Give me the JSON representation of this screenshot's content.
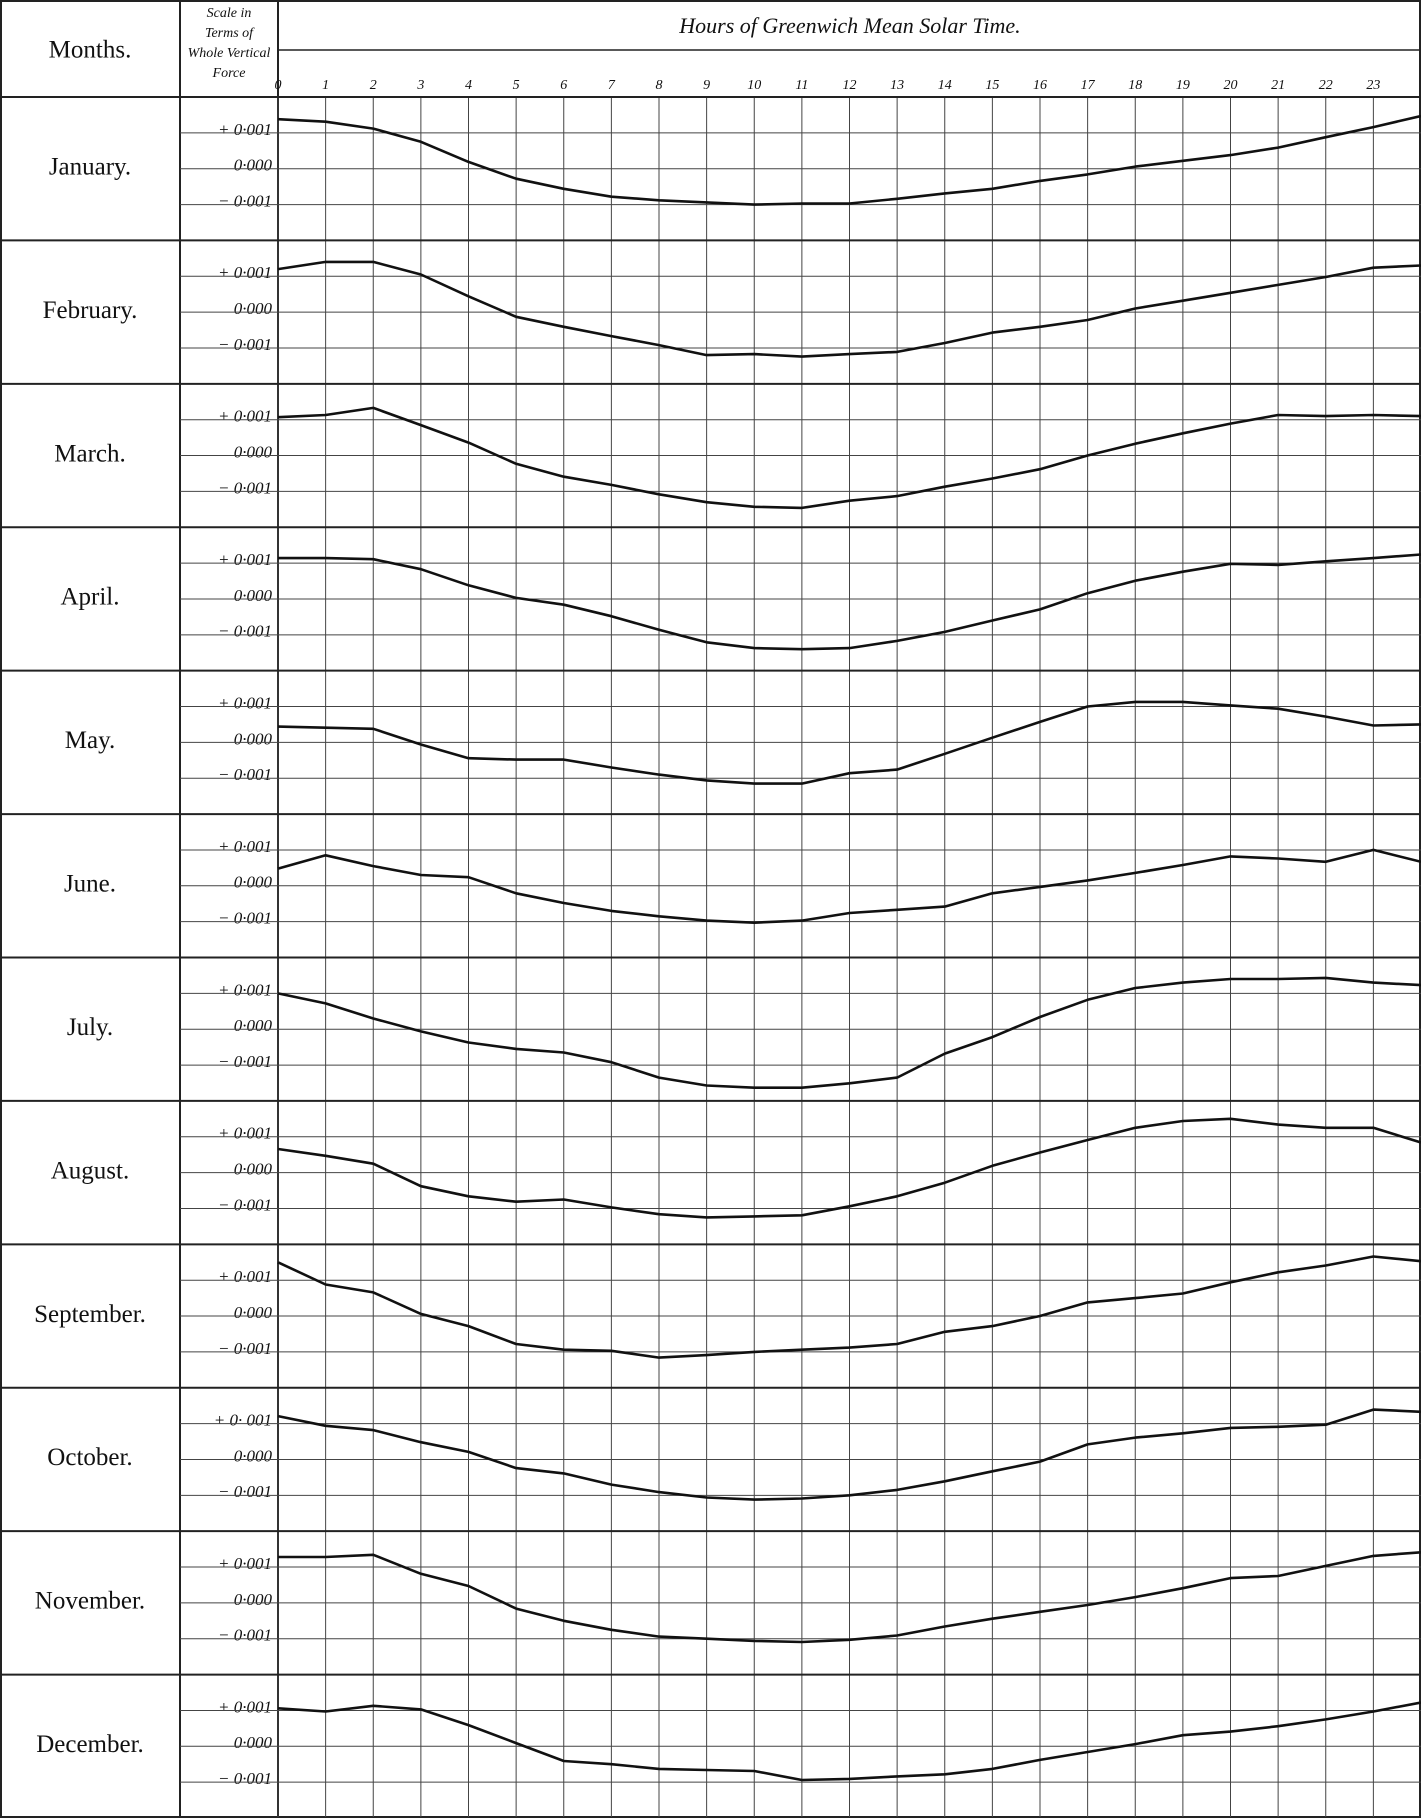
{
  "header": {
    "months_label": "Months.",
    "scale_label": [
      "Scale in",
      "Terms of",
      "Whole Vertical",
      "Force"
    ]
  },
  "hours_axis": {
    "title": "Hours of Greenwich Mean Solar Time.",
    "xlim": [
      0,
      24
    ],
    "xticks": [
      0,
      1,
      2,
      3,
      4,
      5,
      6,
      7,
      8,
      9,
      10,
      11,
      12,
      13,
      14,
      15,
      16,
      17,
      18,
      19,
      20,
      21,
      22,
      23
    ]
  },
  "chart_data": [
    {
      "type": "line",
      "title": "January.",
      "x": [
        0,
        1,
        2,
        3,
        4,
        5,
        6,
        7,
        8,
        9,
        10,
        11,
        12,
        13,
        14,
        15,
        16,
        17,
        18,
        19,
        20,
        21,
        22,
        23,
        24
      ],
      "values": [
        0.00138,
        0.00131,
        0.00112,
        0.00075,
        0.00019,
        -0.00028,
        -0.00056,
        -0.00078,
        -0.00088,
        -0.00094,
        -0.001,
        -0.00097,
        -0.00097,
        -0.00084,
        -0.00069,
        -0.00056,
        -0.00034,
        -0.00016,
        6e-05,
        0.00022,
        0.00038,
        0.00059,
        0.00088,
        0.00116,
        0.00147
      ],
      "color": "#111111",
      "ylim": [
        -0.002,
        0.002
      ],
      "yticks": [
        {
          "value": 0.001,
          "label": "+ 0·001"
        },
        {
          "value": 0,
          "label": "0·000"
        },
        {
          "value": -0.001,
          "label": "− 0·001"
        }
      ],
      "grid": true
    },
    {
      "type": "line",
      "title": "February.",
      "x": [
        0,
        1,
        2,
        3,
        4,
        5,
        6,
        7,
        8,
        9,
        10,
        11,
        12,
        13,
        14,
        15,
        16,
        17,
        18,
        19,
        20,
        21,
        22,
        23,
        24
      ],
      "values": [
        0.0012,
        0.0014,
        0.0014,
        0.00105,
        0.00044,
        -0.00013,
        -0.00041,
        -0.00067,
        -0.00092,
        -0.0012,
        -0.00117,
        -0.00124,
        -0.00117,
        -0.00111,
        -0.00086,
        -0.00057,
        -0.00041,
        -0.00022,
        0.0001,
        0.00032,
        0.00054,
        0.00076,
        0.00098,
        0.00124,
        0.0013
      ],
      "color": "#111111",
      "ylim": [
        -0.002,
        0.002
      ],
      "yticks": [
        {
          "value": 0.001,
          "label": "+ 0·001"
        },
        {
          "value": 0,
          "label": "0·000"
        },
        {
          "value": -0.001,
          "label": "− 0·001"
        }
      ],
      "grid": true
    },
    {
      "type": "line",
      "title": "March.",
      "x": [
        0,
        1,
        2,
        3,
        4,
        5,
        6,
        7,
        8,
        9,
        10,
        11,
        12,
        13,
        14,
        15,
        16,
        17,
        18,
        19,
        20,
        21,
        22,
        23,
        24
      ],
      "values": [
        0.00107,
        0.00113,
        0.00133,
        0.00085,
        0.00036,
        -0.00023,
        -0.00059,
        -0.00082,
        -0.00108,
        -0.0013,
        -0.00143,
        -0.00146,
        -0.00126,
        -0.00113,
        -0.00087,
        -0.00064,
        -0.00038,
        0,
        0.00033,
        0.00062,
        0.00089,
        0.00113,
        0.0011,
        0.00113,
        0.0011
      ],
      "color": "#111111",
      "ylim": [
        -0.002,
        0.002
      ],
      "yticks": [
        {
          "value": 0.001,
          "label": "+ 0·001"
        },
        {
          "value": 0,
          "label": "0·000"
        },
        {
          "value": -0.001,
          "label": "− 0·001"
        }
      ],
      "grid": true
    },
    {
      "type": "line",
      "title": "April.",
      "x": [
        0,
        1,
        2,
        3,
        4,
        5,
        6,
        7,
        8,
        9,
        10,
        11,
        12,
        13,
        14,
        15,
        16,
        17,
        18,
        19,
        20,
        21,
        22,
        23,
        24
      ],
      "values": [
        0.00114,
        0.00114,
        0.00111,
        0.00083,
        0.00038,
        3e-05,
        -0.00016,
        -0.00048,
        -0.00086,
        -0.00121,
        -0.00137,
        -0.0014,
        -0.00137,
        -0.00117,
        -0.00092,
        -0.0006,
        -0.00029,
        0.00016,
        0.00051,
        0.00076,
        0.00098,
        0.00095,
        0.00105,
        0.00114,
        0.00124
      ],
      "color": "#111111",
      "ylim": [
        -0.002,
        0.002
      ],
      "yticks": [
        {
          "value": 0.001,
          "label": "+ 0·001"
        },
        {
          "value": 0,
          "label": "0·000"
        },
        {
          "value": -0.001,
          "label": "− 0·001"
        }
      ],
      "grid": true
    },
    {
      "type": "line",
      "title": "May.",
      "x": [
        0,
        1,
        2,
        3,
        4,
        5,
        6,
        7,
        8,
        9,
        10,
        11,
        12,
        13,
        14,
        15,
        16,
        17,
        18,
        19,
        20,
        21,
        22,
        23,
        24
      ],
      "values": [
        0.00044,
        0.00041,
        0.00038,
        -6e-05,
        -0.00044,
        -0.00048,
        -0.00048,
        -0.0007,
        -0.0009,
        -0.00106,
        -0.00115,
        -0.00115,
        -0.00086,
        -0.00076,
        -0.00032,
        0.00013,
        0.00057,
        0.001,
        0.00113,
        0.00113,
        0.00103,
        0.00094,
        0.00072,
        0.00047,
        0.0005
      ],
      "color": "#111111",
      "ylim": [
        -0.002,
        0.002
      ],
      "yticks": [
        {
          "value": 0.001,
          "label": "+ 0·001"
        },
        {
          "value": 0,
          "label": "0·000"
        },
        {
          "value": -0.001,
          "label": "− 0·001"
        }
      ],
      "grid": true
    },
    {
      "type": "line",
      "title": "June.",
      "x": [
        0,
        1,
        2,
        3,
        4,
        5,
        6,
        7,
        8,
        9,
        10,
        11,
        12,
        13,
        14,
        15,
        16,
        17,
        18,
        19,
        20,
        21,
        22,
        23,
        24
      ],
      "values": [
        0.00048,
        0.00085,
        0.00055,
        0.0003,
        0.00024,
        -0.00021,
        -0.00048,
        -0.0007,
        -0.00085,
        -0.00097,
        -0.00103,
        -0.00097,
        -0.00076,
        -0.00067,
        -0.00058,
        -0.00021,
        -3e-05,
        0.00015,
        0.00036,
        0.00058,
        0.00082,
        0.00076,
        0.00067,
        0.001,
        0.00067
      ],
      "color": "#111111",
      "ylim": [
        -0.002,
        0.002
      ],
      "yticks": [
        {
          "value": 0.001,
          "label": "+ 0·001"
        },
        {
          "value": 0,
          "label": "0·000"
        },
        {
          "value": -0.001,
          "label": "− 0·001"
        }
      ],
      "grid": true
    },
    {
      "type": "line",
      "title": "July.",
      "x": [
        0,
        1,
        2,
        3,
        4,
        5,
        6,
        7,
        8,
        9,
        10,
        11,
        12,
        13,
        14,
        15,
        16,
        17,
        18,
        19,
        20,
        21,
        22,
        23,
        24
      ],
      "values": [
        0.001,
        0.00072,
        0.0003,
        -6e-05,
        -0.00037,
        -0.00055,
        -0.00065,
        -0.00092,
        -0.00135,
        -0.00157,
        -0.00163,
        -0.00163,
        -0.00151,
        -0.00135,
        -0.00068,
        -0.00022,
        0.00034,
        0.00082,
        0.00115,
        0.0013,
        0.0014,
        0.0014,
        0.00143,
        0.0013,
        0.00123
      ],
      "color": "#111111",
      "ylim": [
        -0.002,
        0.002
      ],
      "yticks": [
        {
          "value": 0.001,
          "label": "+ 0·001"
        },
        {
          "value": 0,
          "label": "0·000"
        },
        {
          "value": -0.001,
          "label": "− 0·001"
        }
      ],
      "grid": true
    },
    {
      "type": "line",
      "title": "August.",
      "x": [
        0,
        1,
        2,
        3,
        4,
        5,
        6,
        7,
        8,
        9,
        10,
        11,
        12,
        13,
        14,
        15,
        16,
        17,
        18,
        19,
        20,
        21,
        22,
        23,
        24
      ],
      "values": [
        0.00066,
        0.00047,
        0.00025,
        -0.00038,
        -0.00066,
        -0.00081,
        -0.00075,
        -0.00097,
        -0.00116,
        -0.00125,
        -0.00122,
        -0.00119,
        -0.00094,
        -0.00066,
        -0.00028,
        0.00019,
        0.00056,
        0.00091,
        0.00125,
        0.00144,
        0.0015,
        0.00134,
        0.00125,
        0.00125,
        0.00084
      ],
      "color": "#111111",
      "ylim": [
        -0.002,
        0.002
      ],
      "yticks": [
        {
          "value": 0.001,
          "label": "+ 0·001"
        },
        {
          "value": 0,
          "label": "0·000"
        },
        {
          "value": -0.001,
          "label": "− 0·001"
        }
      ],
      "grid": true
    },
    {
      "type": "line",
      "title": "September.",
      "x": [
        0,
        1,
        2,
        3,
        4,
        5,
        6,
        7,
        8,
        9,
        10,
        11,
        12,
        13,
        14,
        15,
        16,
        17,
        18,
        19,
        20,
        21,
        22,
        23,
        24
      ],
      "values": [
        0.0015,
        0.00088,
        0.00066,
        6e-05,
        -0.00028,
        -0.00078,
        -0.00094,
        -0.00097,
        -0.00116,
        -0.00109,
        -0.001,
        -0.00094,
        -0.00088,
        -0.00078,
        -0.00044,
        -0.00028,
        0,
        0.00038,
        0.0005,
        0.00063,
        0.00094,
        0.00122,
        0.00141,
        0.00166,
        0.00153
      ],
      "color": "#111111",
      "ylim": [
        -0.002,
        0.002
      ],
      "yticks": [
        {
          "value": 0.001,
          "label": "+ 0·001"
        },
        {
          "value": 0,
          "label": "0·000"
        },
        {
          "value": -0.001,
          "label": "− 0·001"
        }
      ],
      "grid": true
    },
    {
      "type": "line",
      "title": "October.",
      "x": [
        0,
        1,
        2,
        3,
        4,
        5,
        6,
        7,
        8,
        9,
        10,
        11,
        12,
        13,
        14,
        15,
        16,
        17,
        18,
        19,
        20,
        21,
        22,
        23,
        24
      ],
      "values": [
        0.00121,
        0.00094,
        0.00082,
        0.00048,
        0.00021,
        -0.00024,
        -0.00039,
        -0.0007,
        -0.00091,
        -0.00106,
        -0.00112,
        -0.00109,
        -0.001,
        -0.00085,
        -0.00061,
        -0.00033,
        -6e-05,
        0.00042,
        0.00061,
        0.00073,
        0.00088,
        0.00091,
        0.00097,
        0.00139,
        0.00133
      ],
      "color": "#111111",
      "ylim": [
        -0.002,
        0.002
      ],
      "yticks": [
        {
          "value": 0.001,
          "label": "+ 0· 001"
        },
        {
          "value": 0,
          "label": "0·000"
        },
        {
          "value": -0.001,
          "label": "− 0·001"
        }
      ],
      "grid": true
    },
    {
      "type": "line",
      "title": "November.",
      "x": [
        0,
        1,
        2,
        3,
        4,
        5,
        6,
        7,
        8,
        9,
        10,
        11,
        12,
        13,
        14,
        15,
        16,
        17,
        18,
        19,
        20,
        21,
        22,
        23,
        24
      ],
      "values": [
        0.00128,
        0.00128,
        0.00134,
        0.00081,
        0.00047,
        -0.00016,
        -0.0005,
        -0.00075,
        -0.00094,
        -0.001,
        -0.00106,
        -0.00109,
        -0.00103,
        -0.00091,
        -0.00066,
        -0.00044,
        -0.00025,
        -6e-05,
        0.00016,
        0.00041,
        0.00069,
        0.00075,
        0.00103,
        0.00131,
        0.00141
      ],
      "color": "#111111",
      "ylim": [
        -0.002,
        0.002
      ],
      "yticks": [
        {
          "value": 0.001,
          "label": "+ 0·001"
        },
        {
          "value": 0,
          "label": "0·000"
        },
        {
          "value": -0.001,
          "label": "− 0·001"
        }
      ],
      "grid": true
    },
    {
      "type": "line",
      "title": "December.",
      "x": [
        0,
        1,
        2,
        3,
        4,
        5,
        6,
        7,
        8,
        9,
        10,
        11,
        12,
        13,
        14,
        15,
        16,
        17,
        18,
        19,
        20,
        21,
        22,
        23,
        24
      ],
      "values": [
        0.00106,
        0.00097,
        0.00113,
        0.00103,
        0.00059,
        9e-05,
        -0.00041,
        -0.0005,
        -0.00063,
        -0.00066,
        -0.00069,
        -0.00094,
        -0.00091,
        -0.00084,
        -0.00078,
        -0.00063,
        -0.00038,
        -0.00016,
        6e-05,
        0.00031,
        0.00041,
        0.00056,
        0.00075,
        0.00097,
        0.00122
      ],
      "color": "#111111",
      "ylim": [
        -0.002,
        0.002
      ],
      "yticks": [
        {
          "value": 0.001,
          "label": "+ 0·001"
        },
        {
          "value": 0,
          "label": "0·000"
        },
        {
          "value": -0.001,
          "label": "− 0·001"
        }
      ],
      "grid": true
    }
  ]
}
